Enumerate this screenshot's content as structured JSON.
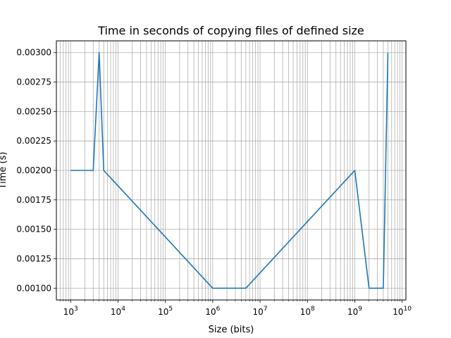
{
  "chart_data": {
    "type": "line",
    "title": "Time in seconds of copying files of defined size",
    "xlabel": "Size (bits)",
    "ylabel": "Time (s)",
    "xscale": "log",
    "xlim": [
      500,
      12000000000
    ],
    "ylim": [
      0.0009,
      0.0031
    ],
    "grid": "both-major-and-minor",
    "x_ticks": [
      {
        "base": "10",
        "exp": "3",
        "value": 1000
      },
      {
        "base": "10",
        "exp": "4",
        "value": 10000
      },
      {
        "base": "10",
        "exp": "5",
        "value": 100000
      },
      {
        "base": "10",
        "exp": "6",
        "value": 1000000
      },
      {
        "base": "10",
        "exp": "7",
        "value": 10000000
      },
      {
        "base": "10",
        "exp": "8",
        "value": 100000000
      },
      {
        "base": "10",
        "exp": "9",
        "value": 1000000000
      },
      {
        "base": "10",
        "exp": "10",
        "value": 10000000000
      }
    ],
    "y_ticks": [
      "0.00100",
      "0.00125",
      "0.00150",
      "0.00175",
      "0.00200",
      "0.00225",
      "0.00250",
      "0.00275",
      "0.00300"
    ],
    "series": [
      {
        "color": "#1f77b4",
        "x": [
          1000,
          3000,
          4000,
          5000,
          1000000,
          5000000,
          1000000000,
          2000000000,
          4000000000,
          5000000000
        ],
        "y": [
          0.002,
          0.002,
          0.003,
          0.002,
          0.001,
          0.001,
          0.002,
          0.001,
          0.001,
          0.003
        ]
      }
    ]
  }
}
